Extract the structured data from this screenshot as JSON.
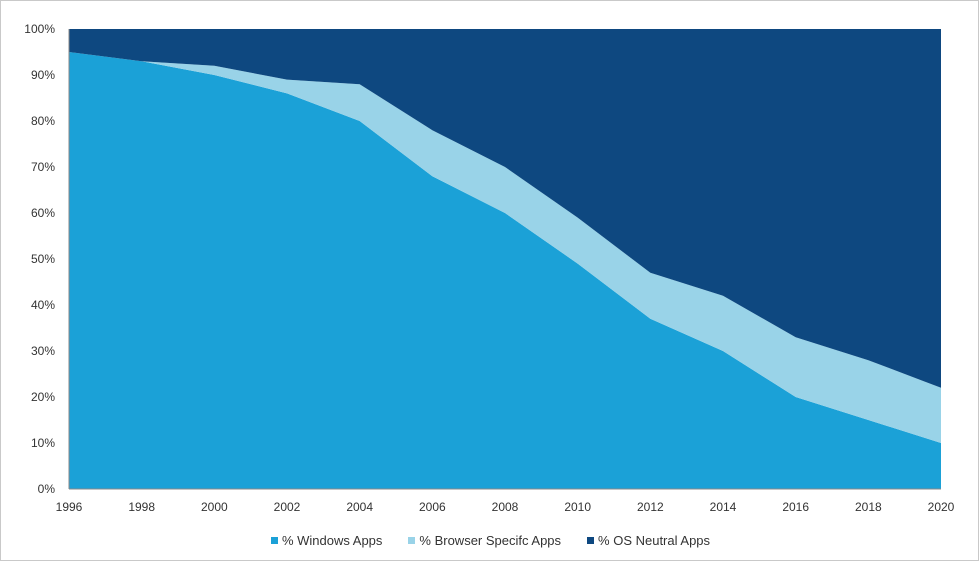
{
  "chart_data": {
    "type": "area",
    "stacked": true,
    "percent": true,
    "x": [
      1996,
      1998,
      2000,
      2002,
      2004,
      2006,
      2008,
      2010,
      2012,
      2014,
      2016,
      2018,
      2020
    ],
    "x_tick_labels": [
      "1996",
      "1998",
      "2000",
      "2002",
      "2004",
      "2006",
      "2008",
      "2010",
      "2012",
      "2014",
      "2016",
      "2018",
      "2020"
    ],
    "y_tick_labels": [
      "0%",
      "10%",
      "20%",
      "30%",
      "40%",
      "50%",
      "60%",
      "70%",
      "80%",
      "90%",
      "100%"
    ],
    "ylim": [
      0,
      100
    ],
    "grid": false,
    "legend_position": "bottom",
    "series": [
      {
        "name": "% Windows Apps",
        "color": "#1ba1d7",
        "values": [
          95,
          93,
          90,
          86,
          80,
          68,
          60,
          49,
          37,
          30,
          20,
          15,
          10
        ]
      },
      {
        "name": "% Browser Specifc Apps",
        "color": "#99d3e8",
        "values": [
          0,
          0,
          2,
          3,
          8,
          10,
          10,
          10,
          10,
          12,
          13,
          13,
          12
        ]
      },
      {
        "name": "% OS Neutral Apps",
        "color": "#0e4880",
        "values": [
          5,
          7,
          8,
          11,
          12,
          22,
          30,
          41,
          53,
          58,
          67,
          72,
          78
        ]
      }
    ],
    "title": "",
    "xlabel": "",
    "ylabel": ""
  }
}
